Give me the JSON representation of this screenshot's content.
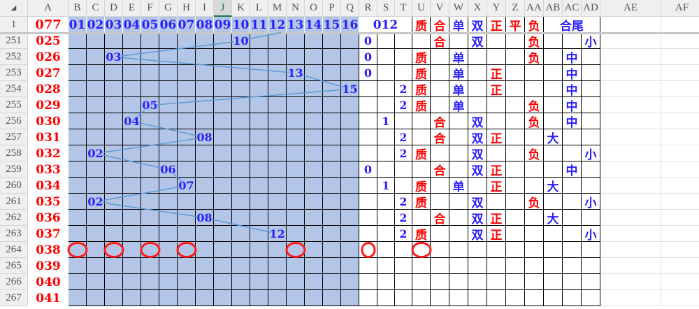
{
  "columns": [
    "A",
    "B",
    "C",
    "D",
    "E",
    "F",
    "G",
    "H",
    "I",
    "J",
    "K",
    "L",
    "M",
    "N",
    "O",
    "P",
    "Q",
    "R",
    "S",
    "T",
    "U",
    "V",
    "W",
    "X",
    "Y",
    "Z",
    "AA",
    "AB",
    "AC",
    "AD",
    "AE",
    "AF"
  ],
  "selected_column": "J",
  "header_row": {
    "row_number": "1",
    "a": "077",
    "numbers": [
      "01",
      "02",
      "03",
      "04",
      "05",
      "06",
      "07",
      "08",
      "09",
      "10",
      "11",
      "12",
      "13",
      "14",
      "15",
      "16"
    ],
    "mod_label": "012",
    "U": "质",
    "V": "合",
    "W": "单",
    "X": "双",
    "Y": "正",
    "Z": "平",
    "AA": "负",
    "tail_label": "合尾"
  },
  "rows": [
    {
      "row": "251",
      "a": "025",
      "pick": {
        "col": "K",
        "val": "10"
      },
      "mod": {
        "col": "R",
        "val": "0"
      },
      "tags": {
        "V": "合",
        "X": "双",
        "AA": "负",
        "AD": "小"
      }
    },
    {
      "row": "252",
      "a": "026",
      "pick": {
        "col": "D",
        "val": "03"
      },
      "mod": {
        "col": "R",
        "val": "0"
      },
      "tags": {
        "U": "质",
        "W": "单",
        "AA": "负",
        "AC": "中"
      }
    },
    {
      "row": "253",
      "a": "027",
      "pick": {
        "col": "N",
        "val": "13"
      },
      "mod": {
        "col": "R",
        "val": "0"
      },
      "tags": {
        "U": "质",
        "W": "单",
        "Y": "正",
        "AC": "中"
      }
    },
    {
      "row": "254",
      "a": "028",
      "pick": {
        "col": "Q",
        "val": "15"
      },
      "mod": {
        "col": "T",
        "val": "2"
      },
      "tags": {
        "U": "质",
        "W": "单",
        "Y": "正",
        "AC": "中"
      }
    },
    {
      "row": "255",
      "a": "029",
      "pick": {
        "col": "F",
        "val": "05"
      },
      "mod": {
        "col": "T",
        "val": "2"
      },
      "tags": {
        "U": "质",
        "W": "单",
        "AA": "负",
        "AC": "中"
      }
    },
    {
      "row": "256",
      "a": "030",
      "pick": {
        "col": "E",
        "val": "04"
      },
      "mod": {
        "col": "S",
        "val": "1"
      },
      "tags": {
        "V": "合",
        "X": "双",
        "AA": "负",
        "AC": "中"
      }
    },
    {
      "row": "257",
      "a": "031",
      "pick": {
        "col": "I",
        "val": "08"
      },
      "mod": {
        "col": "T",
        "val": "2"
      },
      "tags": {
        "V": "合",
        "X": "双",
        "Y": "正",
        "AB": "大"
      }
    },
    {
      "row": "258",
      "a": "032",
      "pick": {
        "col": "C",
        "val": "02"
      },
      "mod": {
        "col": "T",
        "val": "2"
      },
      "tags": {
        "U": "质",
        "X": "双",
        "AA": "负",
        "AD": "小"
      }
    },
    {
      "row": "259",
      "a": "033",
      "pick": {
        "col": "G",
        "val": "06"
      },
      "mod": {
        "col": "R",
        "val": "0"
      },
      "tags": {
        "V": "合",
        "X": "双",
        "Y": "正",
        "AC": "中"
      }
    },
    {
      "row": "260",
      "a": "034",
      "pick": {
        "col": "H",
        "val": "07"
      },
      "mod": {
        "col": "S",
        "val": "1"
      },
      "tags": {
        "U": "质",
        "W": "单",
        "Y": "正",
        "AB": "大"
      }
    },
    {
      "row": "261",
      "a": "035",
      "pick": {
        "col": "C",
        "val": "02"
      },
      "mod": {
        "col": "T",
        "val": "2"
      },
      "tags": {
        "U": "质",
        "X": "双",
        "AA": "负",
        "AD": "小"
      }
    },
    {
      "row": "262",
      "a": "036",
      "pick": {
        "col": "I",
        "val": "08"
      },
      "mod": {
        "col": "T",
        "val": "2"
      },
      "tags": {
        "V": "合",
        "X": "双",
        "Y": "正",
        "AB": "大"
      }
    },
    {
      "row": "263",
      "a": "037",
      "pick": {
        "col": "M",
        "val": "12"
      },
      "mod": {
        "col": "T",
        "val": "2"
      },
      "tags": {
        "U": "质",
        "X": "双",
        "Y": "正",
        "AD": "小"
      }
    },
    {
      "row": "264",
      "a": "038",
      "circled_columns": [
        "B",
        "D",
        "F",
        "H",
        "N",
        "R",
        "U"
      ]
    },
    {
      "row": "265",
      "a": "039"
    },
    {
      "row": "266",
      "a": "040"
    },
    {
      "row": "267",
      "a": "041"
    }
  ],
  "colors": {
    "blue_text": "#2a1dff",
    "red_text": "#ff0000",
    "number_fill": "#b4c6e7",
    "trend_line": "#5b9bd5",
    "circle": "#ff1a1a"
  },
  "red_tags": [
    "质",
    "合",
    "正",
    "平",
    "负"
  ]
}
